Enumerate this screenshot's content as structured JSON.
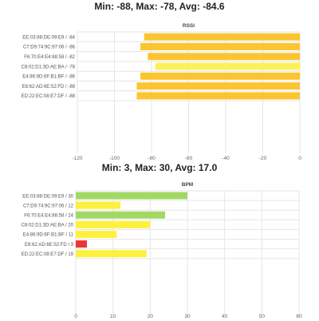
{
  "rssi_summary": "Min: -88, Max: -78, Avg: -84.6",
  "bpm_summary": "Min: 3, Max: 30, Avg: 17.0",
  "chart_data": [
    {
      "type": "bar",
      "orientation": "horizontal",
      "title": "RSSI",
      "categories": [
        "EE:03:88:DE:09:E9 / -84",
        "C7:D9:74:9C:97:06 / -86",
        "F6:70:E4:E4:88:58 / -82",
        "C8:02:D1:3D:AE:BA / -78",
        "E4:86:9D:6F:B1:BF / -86",
        "E8:62:AD:6E:52:FD / -88",
        "ED:22:EC:08:E7:DF / -88"
      ],
      "values": [
        -84,
        -86,
        -82,
        -78,
        -86,
        -88,
        -88
      ],
      "colors": [
        "#fbc531",
        "#fbc531",
        "#fbc531",
        "#fdf15a",
        "#fbc531",
        "#fbc531",
        "#fbc531"
      ],
      "xlim": [
        -120,
        0
      ],
      "xticks": [
        -120,
        -100,
        -80,
        -60,
        -40,
        -20,
        0
      ],
      "grid": true
    },
    {
      "type": "bar",
      "orientation": "horizontal",
      "title": "BPM",
      "categories": [
        "EE:03:88:DE:09:E9 / 30",
        "C7:D9:74:9C:97:06 / 12",
        "F6:70:E4:E4:88:58 / 24",
        "C8:02:D1:3D:AE:BA / 20",
        "E4:86:9D:6F:B1:BF / 11",
        "E8:62:AD:6E:52:FD / 3",
        "ED:22:EC:08:E7:DF / 19"
      ],
      "values": [
        30,
        12,
        24,
        20,
        11,
        3,
        19
      ],
      "colors": [
        "#a2d964",
        "#fdf13e",
        "#a2d964",
        "#fdf13e",
        "#fdf13e",
        "#ee3535",
        "#fdf13e"
      ],
      "xlim": [
        0,
        60
      ],
      "xticks": [
        0,
        10,
        20,
        30,
        40,
        50,
        60
      ],
      "grid": true
    }
  ]
}
